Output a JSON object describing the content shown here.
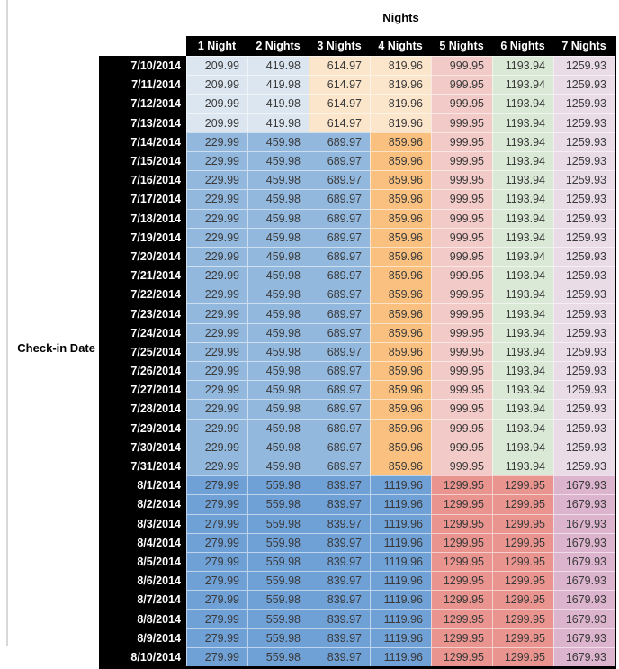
{
  "page": {
    "top_axis_label": "Nights",
    "row_axis_label": "Check-in Date"
  },
  "colors": {
    "header_bg": "#000000",
    "header_text": "#ffffff",
    "value_text": "#3a3a3a",
    "left_rule": "#d8d8d8",
    "tier_palette": {
      "A": [
        "#DBE6F1",
        "#DBE6F1",
        "#FBE5CB",
        "#FBE5CB",
        "#F2CAC7",
        "#DAE9D6",
        "#E9DCE7"
      ],
      "B": [
        "#93B8DE",
        "#93B8DE",
        "#93B8DE",
        "#F9C07F",
        "#F2CAC7",
        "#DAE9D6",
        "#E9DCE7"
      ],
      "C": [
        "#6FA0D6",
        "#6FA0D6",
        "#6FA0D6",
        "#6FA0D6",
        "#E9948F",
        "#E9948F",
        "#DDB4CE"
      ]
    }
  },
  "chart_data": {
    "type": "table",
    "title": "Nights",
    "row_label": "Check-in Date",
    "columns": [
      "1 Night",
      "2 Nights",
      "3 Nights",
      "4 Nights",
      "5 Nights",
      "6 Nights",
      "7 Nights"
    ],
    "rows": [
      {
        "date": "7/10/2014",
        "tier": "A",
        "values": [
          "209.99",
          "419.98",
          "614.97",
          "819.96",
          "999.95",
          "1193.94",
          "1259.93"
        ]
      },
      {
        "date": "7/11/2014",
        "tier": "A",
        "values": [
          "209.99",
          "419.98",
          "614.97",
          "819.96",
          "999.95",
          "1193.94",
          "1259.93"
        ]
      },
      {
        "date": "7/12/2014",
        "tier": "A",
        "values": [
          "209.99",
          "419.98",
          "614.97",
          "819.96",
          "999.95",
          "1193.94",
          "1259.93"
        ]
      },
      {
        "date": "7/13/2014",
        "tier": "A",
        "values": [
          "209.99",
          "419.98",
          "614.97",
          "819.96",
          "999.95",
          "1193.94",
          "1259.93"
        ]
      },
      {
        "date": "7/14/2014",
        "tier": "B",
        "values": [
          "229.99",
          "459.98",
          "689.97",
          "859.96",
          "999.95",
          "1193.94",
          "1259.93"
        ]
      },
      {
        "date": "7/15/2014",
        "tier": "B",
        "values": [
          "229.99",
          "459.98",
          "689.97",
          "859.96",
          "999.95",
          "1193.94",
          "1259.93"
        ]
      },
      {
        "date": "7/16/2014",
        "tier": "B",
        "values": [
          "229.99",
          "459.98",
          "689.97",
          "859.96",
          "999.95",
          "1193.94",
          "1259.93"
        ]
      },
      {
        "date": "7/17/2014",
        "tier": "B",
        "values": [
          "229.99",
          "459.98",
          "689.97",
          "859.96",
          "999.95",
          "1193.94",
          "1259.93"
        ]
      },
      {
        "date": "7/18/2014",
        "tier": "B",
        "values": [
          "229.99",
          "459.98",
          "689.97",
          "859.96",
          "999.95",
          "1193.94",
          "1259.93"
        ]
      },
      {
        "date": "7/19/2014",
        "tier": "B",
        "values": [
          "229.99",
          "459.98",
          "689.97",
          "859.96",
          "999.95",
          "1193.94",
          "1259.93"
        ]
      },
      {
        "date": "7/20/2014",
        "tier": "B",
        "values": [
          "229.99",
          "459.98",
          "689.97",
          "859.96",
          "999.95",
          "1193.94",
          "1259.93"
        ]
      },
      {
        "date": "7/21/2014",
        "tier": "B",
        "values": [
          "229.99",
          "459.98",
          "689.97",
          "859.96",
          "999.95",
          "1193.94",
          "1259.93"
        ]
      },
      {
        "date": "7/22/2014",
        "tier": "B",
        "values": [
          "229.99",
          "459.98",
          "689.97",
          "859.96",
          "999.95",
          "1193.94",
          "1259.93"
        ]
      },
      {
        "date": "7/23/2014",
        "tier": "B",
        "values": [
          "229.99",
          "459.98",
          "689.97",
          "859.96",
          "999.95",
          "1193.94",
          "1259.93"
        ]
      },
      {
        "date": "7/24/2014",
        "tier": "B",
        "values": [
          "229.99",
          "459.98",
          "689.97",
          "859.96",
          "999.95",
          "1193.94",
          "1259.93"
        ]
      },
      {
        "date": "7/25/2014",
        "tier": "B",
        "values": [
          "229.99",
          "459.98",
          "689.97",
          "859.96",
          "999.95",
          "1193.94",
          "1259.93"
        ]
      },
      {
        "date": "7/26/2014",
        "tier": "B",
        "values": [
          "229.99",
          "459.98",
          "689.97",
          "859.96",
          "999.95",
          "1193.94",
          "1259.93"
        ]
      },
      {
        "date": "7/27/2014",
        "tier": "B",
        "values": [
          "229.99",
          "459.98",
          "689.97",
          "859.96",
          "999.95",
          "1193.94",
          "1259.93"
        ]
      },
      {
        "date": "7/28/2014",
        "tier": "B",
        "values": [
          "229.99",
          "459.98",
          "689.97",
          "859.96",
          "999.95",
          "1193.94",
          "1259.93"
        ]
      },
      {
        "date": "7/29/2014",
        "tier": "B",
        "values": [
          "229.99",
          "459.98",
          "689.97",
          "859.96",
          "999.95",
          "1193.94",
          "1259.93"
        ]
      },
      {
        "date": "7/30/2014",
        "tier": "B",
        "values": [
          "229.99",
          "459.98",
          "689.97",
          "859.96",
          "999.95",
          "1193.94",
          "1259.93"
        ]
      },
      {
        "date": "7/31/2014",
        "tier": "B",
        "values": [
          "229.99",
          "459.98",
          "689.97",
          "859.96",
          "999.95",
          "1193.94",
          "1259.93"
        ]
      },
      {
        "date": "8/1/2014",
        "tier": "C",
        "values": [
          "279.99",
          "559.98",
          "839.97",
          "1119.96",
          "1299.95",
          "1299.95",
          "1679.93"
        ]
      },
      {
        "date": "8/2/2014",
        "tier": "C",
        "values": [
          "279.99",
          "559.98",
          "839.97",
          "1119.96",
          "1299.95",
          "1299.95",
          "1679.93"
        ]
      },
      {
        "date": "8/3/2014",
        "tier": "C",
        "values": [
          "279.99",
          "559.98",
          "839.97",
          "1119.96",
          "1299.95",
          "1299.95",
          "1679.93"
        ]
      },
      {
        "date": "8/4/2014",
        "tier": "C",
        "values": [
          "279.99",
          "559.98",
          "839.97",
          "1119.96",
          "1299.95",
          "1299.95",
          "1679.93"
        ]
      },
      {
        "date": "8/5/2014",
        "tier": "C",
        "values": [
          "279.99",
          "559.98",
          "839.97",
          "1119.96",
          "1299.95",
          "1299.95",
          "1679.93"
        ]
      },
      {
        "date": "8/6/2014",
        "tier": "C",
        "values": [
          "279.99",
          "559.98",
          "839.97",
          "1119.96",
          "1299.95",
          "1299.95",
          "1679.93"
        ]
      },
      {
        "date": "8/7/2014",
        "tier": "C",
        "values": [
          "279.99",
          "559.98",
          "839.97",
          "1119.96",
          "1299.95",
          "1299.95",
          "1679.93"
        ]
      },
      {
        "date": "8/8/2014",
        "tier": "C",
        "values": [
          "279.99",
          "559.98",
          "839.97",
          "1119.96",
          "1299.95",
          "1299.95",
          "1679.93"
        ]
      },
      {
        "date": "8/9/2014",
        "tier": "C",
        "values": [
          "279.99",
          "559.98",
          "839.97",
          "1119.96",
          "1299.95",
          "1299.95",
          "1679.93"
        ]
      },
      {
        "date": "8/10/2014",
        "tier": "C",
        "values": [
          "279.99",
          "559.98",
          "839.97",
          "1119.96",
          "1299.95",
          "1299.95",
          "1679.93"
        ]
      }
    ],
    "layout_hints": {
      "row_header_position": "left",
      "column_header_position": "top",
      "header_style": "black-background-white-bold-text",
      "gridlines": "thin white between cells"
    }
  }
}
